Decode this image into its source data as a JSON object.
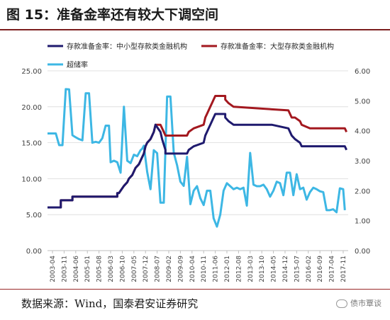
{
  "figure": {
    "title": "图 15：准备金率还有较大下调空间",
    "source": "数据来源：Wind，国泰君安证券研究",
    "watermark": "债市覃谈"
  },
  "chart_data": {
    "type": "line",
    "title": "",
    "legend": [
      {
        "name": "存款准备金率：中小型存款类金融机构",
        "color": "#1f1a6e"
      },
      {
        "name": "存款准备金率：大型存款类金融机构",
        "color": "#a3181f"
      },
      {
        "name": "超储率",
        "color": "#3db7e4"
      }
    ],
    "legend_placement": "top",
    "left_axis": {
      "ticks": [
        "0.00",
        "5.00",
        "10.00",
        "15.00",
        "20.00",
        "25.00"
      ],
      "ylim": [
        0,
        25
      ]
    },
    "right_axis": {
      "ticks": [
        "0.00",
        "1.00",
        "2.00",
        "3.00",
        "4.00",
        "5.00",
        "6.00"
      ],
      "ylim": [
        0,
        6
      ]
    },
    "x_ticks": [
      "2003-04",
      "2003-11",
      "2004-06",
      "2005-01",
      "2005-08",
      "2006-03",
      "2006-10",
      "2007-05",
      "2007-12",
      "2008-07",
      "2009-02",
      "2009-09",
      "2010-04",
      "2010-11",
      "2011-06",
      "2012-01",
      "2012-08",
      "2013-03",
      "2013-10",
      "2014-05",
      "2014-12",
      "2015-07",
      "2016-02",
      "2016-09",
      "2017-04",
      "2017-11"
    ],
    "xlim": [
      "2003-01",
      "2018-02"
    ],
    "grid": "horizontal",
    "series": [
      {
        "name": "存款准备金率：中小型存款类金融机构",
        "axis": "left",
        "color": "#1f1a6e",
        "points": [
          [
            "2003-01",
            6.0
          ],
          [
            "2003-09",
            6.0
          ],
          [
            "2003-09",
            7.0
          ],
          [
            "2004-04",
            7.0
          ],
          [
            "2004-04",
            7.5
          ],
          [
            "2006-07",
            7.5
          ],
          [
            "2006-07",
            8.0
          ],
          [
            "2006-08",
            8.0
          ],
          [
            "2006-11",
            9.0
          ],
          [
            "2007-01",
            9.5
          ],
          [
            "2007-02",
            10.0
          ],
          [
            "2007-04",
            10.5
          ],
          [
            "2007-05",
            11.0
          ],
          [
            "2007-06",
            11.5
          ],
          [
            "2007-08",
            12.0
          ],
          [
            "2007-09",
            12.5
          ],
          [
            "2007-10",
            13.0
          ],
          [
            "2007-11",
            13.5
          ],
          [
            "2007-12",
            14.5
          ],
          [
            "2008-01",
            15.0
          ],
          [
            "2008-03",
            15.5
          ],
          [
            "2008-04",
            16.0
          ],
          [
            "2008-05",
            16.5
          ],
          [
            "2008-06",
            17.5
          ],
          [
            "2008-09",
            16.5
          ],
          [
            "2008-10",
            15.5
          ],
          [
            "2008-12",
            14.0
          ],
          [
            "2008-12",
            13.5
          ],
          [
            "2010-01",
            13.5
          ],
          [
            "2010-02",
            14.0
          ],
          [
            "2010-05",
            14.5
          ],
          [
            "2010-11",
            15.0
          ],
          [
            "2010-12",
            16.0
          ],
          [
            "2011-01",
            16.5
          ],
          [
            "2011-02",
            17.0
          ],
          [
            "2011-03",
            17.5
          ],
          [
            "2011-04",
            18.0
          ],
          [
            "2011-05",
            18.5
          ],
          [
            "2011-06",
            19.0
          ],
          [
            "2011-12",
            19.0
          ],
          [
            "2011-12",
            18.5
          ],
          [
            "2012-02",
            18.0
          ],
          [
            "2012-05",
            17.5
          ],
          [
            "2014-04",
            17.5
          ],
          [
            "2015-02",
            17.0
          ],
          [
            "2015-04",
            16.0
          ],
          [
            "2015-06",
            15.5
          ],
          [
            "2015-09",
            15.0
          ],
          [
            "2015-10",
            14.5
          ],
          [
            "2016-03",
            14.5
          ],
          [
            "2017-12",
            14.5
          ],
          [
            "2018-01",
            14.0
          ]
        ]
      },
      {
        "name": "存款准备金率：大型存款类金融机构",
        "axis": "left",
        "color": "#a3181f",
        "points": [
          [
            "2003-01",
            6.0
          ],
          [
            "2003-09",
            6.0
          ],
          [
            "2003-09",
            7.0
          ],
          [
            "2004-04",
            7.0
          ],
          [
            "2004-04",
            7.5
          ],
          [
            "2006-07",
            7.5
          ],
          [
            "2006-07",
            8.0
          ],
          [
            "2006-08",
            8.0
          ],
          [
            "2006-11",
            9.0
          ],
          [
            "2007-01",
            9.5
          ],
          [
            "2007-02",
            10.0
          ],
          [
            "2007-04",
            10.5
          ],
          [
            "2007-05",
            11.0
          ],
          [
            "2007-06",
            11.5
          ],
          [
            "2007-08",
            12.0
          ],
          [
            "2007-09",
            12.5
          ],
          [
            "2007-10",
            13.0
          ],
          [
            "2007-11",
            13.5
          ],
          [
            "2007-12",
            14.5
          ],
          [
            "2008-01",
            15.0
          ],
          [
            "2008-03",
            15.5
          ],
          [
            "2008-04",
            16.0
          ],
          [
            "2008-05",
            16.5
          ],
          [
            "2008-06",
            17.5
          ],
          [
            "2008-09",
            17.5
          ],
          [
            "2008-10",
            17.0
          ],
          [
            "2008-12",
            16.0
          ],
          [
            "2010-01",
            16.0
          ],
          [
            "2010-02",
            16.5
          ],
          [
            "2010-05",
            17.0
          ],
          [
            "2010-11",
            17.5
          ],
          [
            "2010-12",
            18.5
          ],
          [
            "2011-01",
            19.0
          ],
          [
            "2011-02",
            19.5
          ],
          [
            "2011-03",
            20.0
          ],
          [
            "2011-04",
            20.5
          ],
          [
            "2011-05",
            21.0
          ],
          [
            "2011-06",
            21.5
          ],
          [
            "2011-12",
            21.5
          ],
          [
            "2011-12",
            21.0
          ],
          [
            "2012-02",
            20.5
          ],
          [
            "2012-05",
            20.0
          ],
          [
            "2015-02",
            19.5
          ],
          [
            "2015-04",
            18.5
          ],
          [
            "2015-06",
            18.5
          ],
          [
            "2015-09",
            18.0
          ],
          [
            "2015-10",
            17.5
          ],
          [
            "2016-03",
            17.0
          ],
          [
            "2017-12",
            17.0
          ],
          [
            "2018-01",
            16.5
          ]
        ]
      },
      {
        "name": "超储率",
        "axis": "right",
        "color": "#3db7e4",
        "points": [
          [
            "2003-01",
            3.91
          ],
          [
            "2003-06",
            3.91
          ],
          [
            "2003-08",
            3.52
          ],
          [
            "2003-10",
            3.52
          ],
          [
            "2003-12",
            5.39
          ],
          [
            "2004-02",
            5.38
          ],
          [
            "2004-04",
            3.85
          ],
          [
            "2004-06",
            3.78
          ],
          [
            "2004-08",
            3.72
          ],
          [
            "2004-10",
            3.68
          ],
          [
            "2004-12",
            5.25
          ],
          [
            "2005-02",
            5.25
          ],
          [
            "2005-04",
            3.6
          ],
          [
            "2005-06",
            3.63
          ],
          [
            "2005-08",
            3.6
          ],
          [
            "2005-10",
            3.75
          ],
          [
            "2005-12",
            4.17
          ],
          [
            "2006-02",
            4.17
          ],
          [
            "2006-03",
            2.95
          ],
          [
            "2006-05",
            3.0
          ],
          [
            "2006-07",
            2.95
          ],
          [
            "2006-09",
            2.6
          ],
          [
            "2006-11",
            4.8
          ],
          [
            "2007-01",
            3.0
          ],
          [
            "2007-03",
            2.92
          ],
          [
            "2007-05",
            3.2
          ],
          [
            "2007-07",
            3.15
          ],
          [
            "2007-09",
            3.35
          ],
          [
            "2007-10",
            3.4
          ],
          [
            "2007-11",
            3.5
          ],
          [
            "2008-01",
            2.63
          ],
          [
            "2008-03",
            2.05
          ],
          [
            "2008-05",
            3.35
          ],
          [
            "2008-07",
            3.25
          ],
          [
            "2008-09",
            1.6
          ],
          [
            "2008-11",
            1.6
          ],
          [
            "2009-01",
            5.14
          ],
          [
            "2009-03",
            5.14
          ],
          [
            "2009-05",
            3.27
          ],
          [
            "2009-07",
            2.85
          ],
          [
            "2009-09",
            2.3
          ],
          [
            "2009-11",
            2.16
          ],
          [
            "2010-01",
            3.13
          ],
          [
            "2010-03",
            1.55
          ],
          [
            "2010-05",
            2.0
          ],
          [
            "2010-07",
            2.15
          ],
          [
            "2010-09",
            1.75
          ],
          [
            "2010-11",
            1.52
          ],
          [
            "2011-01",
            2.0
          ],
          [
            "2011-03",
            2.0
          ],
          [
            "2011-05",
            1.08
          ],
          [
            "2011-07",
            0.8
          ],
          [
            "2011-09",
            1.2
          ],
          [
            "2011-11",
            2.0
          ],
          [
            "2012-01",
            2.25
          ],
          [
            "2012-03",
            2.15
          ],
          [
            "2012-05",
            2.05
          ],
          [
            "2012-07",
            2.1
          ],
          [
            "2012-09",
            2.05
          ],
          [
            "2012-11",
            2.1
          ],
          [
            "2013-01",
            1.5
          ],
          [
            "2013-03",
            3.26
          ],
          [
            "2013-05",
            2.2
          ],
          [
            "2013-07",
            2.15
          ],
          [
            "2013-09",
            2.15
          ],
          [
            "2013-11",
            2.2
          ],
          [
            "2014-01",
            2.05
          ],
          [
            "2014-03",
            1.8
          ],
          [
            "2014-05",
            2.0
          ],
          [
            "2014-07",
            2.3
          ],
          [
            "2014-09",
            2.25
          ],
          [
            "2014-11",
            1.85
          ],
          [
            "2015-01",
            2.6
          ],
          [
            "2015-03",
            2.6
          ],
          [
            "2015-05",
            1.85
          ],
          [
            "2015-07",
            2.55
          ],
          [
            "2015-09",
            2.05
          ],
          [
            "2015-11",
            2.1
          ],
          [
            "2016-01",
            1.7
          ],
          [
            "2016-03",
            1.95
          ],
          [
            "2016-05",
            2.1
          ],
          [
            "2016-07",
            2.05
          ],
          [
            "2016-09",
            1.98
          ],
          [
            "2016-11",
            1.95
          ],
          [
            "2017-01",
            1.35
          ],
          [
            "2017-03",
            1.35
          ],
          [
            "2017-05",
            1.38
          ],
          [
            "2017-07",
            1.28
          ],
          [
            "2017-09",
            2.08
          ],
          [
            "2017-11",
            2.05
          ],
          [
            "2017-12",
            1.35
          ]
        ]
      }
    ]
  }
}
